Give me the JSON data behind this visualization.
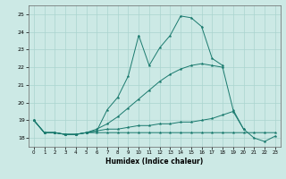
{
  "xlabel": "Humidex (Indice chaleur)",
  "x_values": [
    0,
    1,
    2,
    3,
    4,
    5,
    6,
    7,
    8,
    9,
    10,
    11,
    12,
    13,
    14,
    15,
    16,
    17,
    18,
    19,
    20,
    21,
    22,
    23
  ],
  "line1_y": [
    19.0,
    18.3,
    18.3,
    18.2,
    18.2,
    18.3,
    18.4,
    19.6,
    20.3,
    21.5,
    23.8,
    22.1,
    23.1,
    23.8,
    24.9,
    24.8,
    24.3,
    22.5,
    22.1,
    null,
    null,
    null,
    null,
    null
  ],
  "line2_y": [
    19.0,
    18.3,
    18.3,
    18.2,
    18.2,
    18.3,
    18.5,
    18.8,
    19.2,
    19.7,
    20.2,
    20.7,
    21.2,
    21.6,
    21.9,
    22.1,
    22.2,
    22.1,
    22.0,
    19.6,
    18.5,
    null,
    null,
    null
  ],
  "line3_y": [
    19.0,
    18.3,
    18.3,
    18.2,
    18.2,
    18.3,
    18.4,
    18.5,
    18.5,
    18.6,
    18.7,
    18.7,
    18.8,
    18.8,
    18.9,
    18.9,
    19.0,
    19.1,
    19.3,
    19.5,
    18.5,
    18.0,
    17.8,
    18.1
  ],
  "line4_y": [
    19.0,
    18.3,
    18.3,
    18.2,
    18.2,
    18.3,
    18.3,
    18.3,
    18.3,
    18.3,
    18.3,
    18.3,
    18.3,
    18.3,
    18.3,
    18.3,
    18.3,
    18.3,
    18.3,
    18.3,
    18.3,
    18.3,
    18.3,
    18.3
  ],
  "ylim": [
    17.5,
    25.5
  ],
  "xlim": [
    -0.5,
    23.5
  ],
  "yticks": [
    18,
    19,
    20,
    21,
    22,
    23,
    24,
    25
  ],
  "xticks": [
    0,
    1,
    2,
    3,
    4,
    5,
    6,
    7,
    8,
    9,
    10,
    11,
    12,
    13,
    14,
    15,
    16,
    17,
    18,
    19,
    20,
    21,
    22,
    23
  ],
  "bg_color": "#cce9e5",
  "grid_color": "#aad4cf",
  "line_color": "#1a7a6e"
}
